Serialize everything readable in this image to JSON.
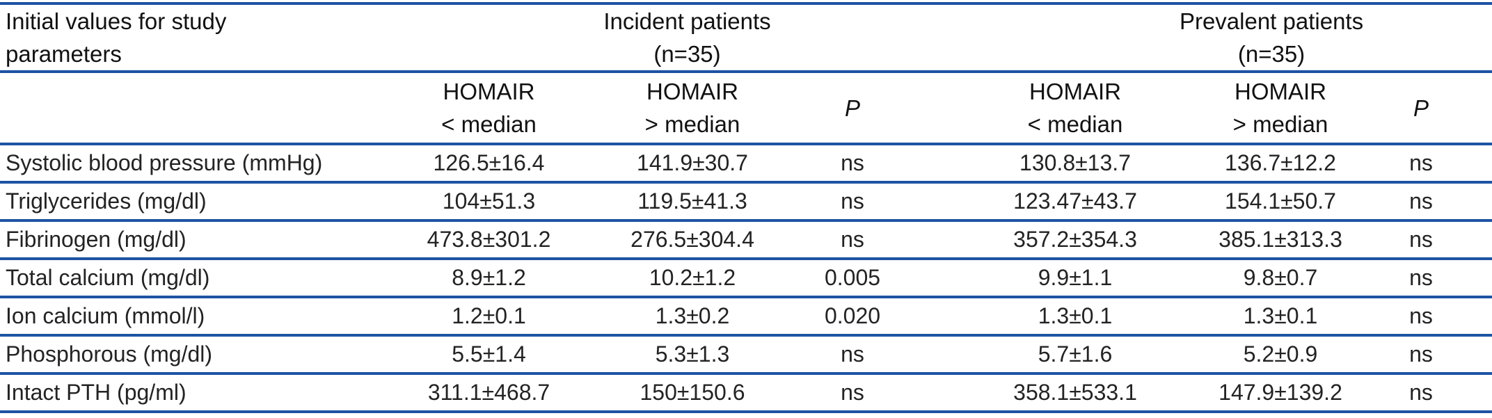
{
  "colors": {
    "rule_blue": "#1d53a3",
    "heading_text": "#111111",
    "body_text": "#232323",
    "background": "#ffffff"
  },
  "table": {
    "corner_title": "Initial values for study parameters",
    "groups": [
      {
        "label": "Incident patients",
        "n_label": "(n=35)"
      },
      {
        "label": "Prevalent patients",
        "n_label": "(n=35)"
      }
    ],
    "subheaders": {
      "lt": {
        "line1": "HOMAIR",
        "line2": "< median"
      },
      "gt": {
        "line1": "HOMAIR",
        "line2": "> median"
      },
      "p": "P"
    },
    "rows": [
      {
        "parameter": "Systolic blood pressure (mmHg)",
        "values": [
          "126.5±16.4",
          "141.9±30.7",
          "ns",
          "130.8±13.7",
          "136.7±12.2",
          "ns"
        ]
      },
      {
        "parameter": "Triglycerides (mg/dl)",
        "values": [
          "104±51.3",
          "119.5±41.3",
          "ns",
          "123.47±43.7",
          "154.1±50.7",
          "ns"
        ]
      },
      {
        "parameter": "Fibrinogen (mg/dl)",
        "values": [
          "473.8±301.2",
          "276.5±304.4",
          "ns",
          "357.2±354.3",
          "385.1±313.3",
          "ns"
        ]
      },
      {
        "parameter": "Total calcium (mg/dl)",
        "values": [
          "8.9±1.2",
          "10.2±1.2",
          "0.005",
          "9.9±1.1",
          "9.8±0.7",
          "ns"
        ]
      },
      {
        "parameter": "Ion calcium (mmol/l)",
        "values": [
          "1.2±0.1",
          "1.3±0.2",
          "0.020",
          "1.3±0.1",
          "1.3±0.1",
          "ns"
        ]
      },
      {
        "parameter": "Phosphorous (mg/dl)",
        "values": [
          "5.5±1.4",
          "5.3±1.3",
          "ns",
          "5.7±1.6",
          "5.2±0.9",
          "ns"
        ]
      },
      {
        "parameter": "Intact PTH (pg/ml)",
        "values": [
          "311.1±468.7",
          "150±150.6",
          "ns",
          "358.1±533.1",
          "147.9±139.2",
          "ns"
        ]
      }
    ]
  }
}
